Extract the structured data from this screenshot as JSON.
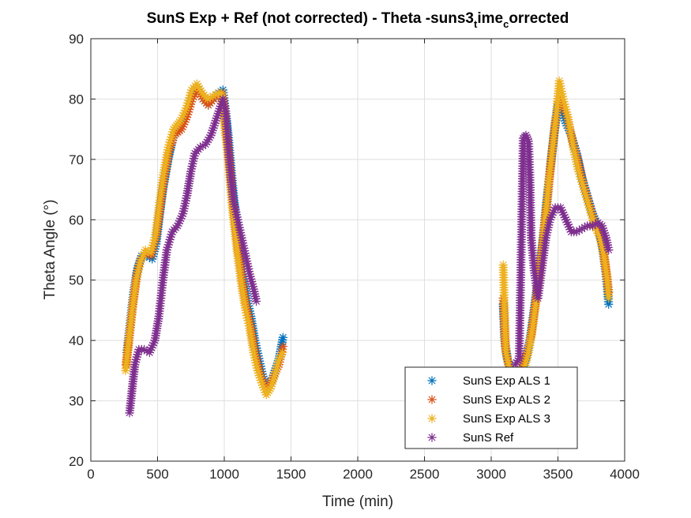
{
  "chart_data": {
    "type": "scatter",
    "title": "SunS Exp + Ref (not corrected) - Theta -suns3",
    "title_sub1": "t",
    "title_mid": "ime",
    "title_sub2": "c",
    "title_end": "orrected",
    "xlabel": "Time (min)",
    "ylabel": "Theta Angle (°)",
    "xlim": [
      0,
      4000
    ],
    "ylim": [
      20,
      90
    ],
    "xticks": [
      0,
      500,
      1000,
      1500,
      2000,
      2500,
      3000,
      3500,
      4000
    ],
    "yticks": [
      20,
      30,
      40,
      50,
      60,
      70,
      80,
      90
    ],
    "grid": true,
    "legend_position": "bottom-right",
    "marker": "*",
    "series": [
      {
        "name": "SunS Exp ALS 1",
        "color": "#0072BD",
        "segments": [
          [
            [
              270,
              38
            ],
            [
              290,
              42
            ],
            [
              320,
              48
            ],
            [
              350,
              52
            ],
            [
              380,
              54
            ],
            [
              420,
              54
            ],
            [
              460,
              53.5
            ],
            [
              490,
              56
            ],
            [
              510,
              60
            ],
            [
              540,
              65
            ],
            [
              580,
              70
            ],
            [
              620,
              74
            ],
            [
              680,
              76
            ],
            [
              720,
              78
            ],
            [
              760,
              81
            ],
            [
              800,
              82
            ],
            [
              840,
              80
            ],
            [
              880,
              79
            ],
            [
              920,
              80
            ],
            [
              960,
              81
            ],
            [
              990,
              81.5
            ],
            [
              1010,
              78
            ],
            [
              1030,
              74
            ],
            [
              1050,
              69
            ],
            [
              1070,
              64
            ],
            [
              1090,
              60
            ],
            [
              1110,
              56
            ],
            [
              1140,
              51
            ],
            [
              1170,
              47
            ],
            [
              1200,
              44
            ],
            [
              1230,
              40
            ],
            [
              1260,
              37
            ],
            [
              1290,
              34
            ],
            [
              1320,
              32.5
            ],
            [
              1350,
              33
            ],
            [
              1380,
              35
            ],
            [
              1410,
              37
            ],
            [
              1440,
              40.5
            ]
          ],
          [
            [
              3090,
              46
            ],
            [
              3100,
              40.5
            ],
            [
              3120,
              37
            ],
            [
              3150,
              35
            ],
            [
              3190,
              34
            ],
            [
              3230,
              35
            ],
            [
              3260,
              37
            ],
            [
              3290,
              40
            ],
            [
              3320,
              45
            ],
            [
              3350,
              50
            ],
            [
              3380,
              55
            ],
            [
              3410,
              62
            ],
            [
              3440,
              68
            ],
            [
              3470,
              74
            ],
            [
              3500,
              79
            ],
            [
              3530,
              78
            ],
            [
              3560,
              76
            ],
            [
              3600,
              74
            ],
            [
              3640,
              71
            ],
            [
              3680,
              67
            ],
            [
              3720,
              64
            ],
            [
              3760,
              61
            ],
            [
              3800,
              59
            ],
            [
              3830,
              56
            ],
            [
              3860,
              51
            ],
            [
              3880,
              46
            ]
          ]
        ]
      },
      {
        "name": "SunS Exp ALS 2",
        "color": "#D95319",
        "segments": [
          [
            [
              265,
              36
            ],
            [
              285,
              40
            ],
            [
              315,
              46
            ],
            [
              345,
              51
            ],
            [
              375,
              53.5
            ],
            [
              415,
              54.5
            ],
            [
              455,
              54
            ],
            [
              490,
              57
            ],
            [
              515,
              61
            ],
            [
              545,
              66
            ],
            [
              585,
              71
            ],
            [
              625,
              74
            ],
            [
              680,
              75
            ],
            [
              720,
              77
            ],
            [
              760,
              80
            ],
            [
              800,
              81.5
            ],
            [
              840,
              80
            ],
            [
              880,
              79
            ],
            [
              920,
              80
            ],
            [
              960,
              80.5
            ],
            [
              985,
              81
            ],
            [
              1005,
              77
            ],
            [
              1025,
              73
            ],
            [
              1045,
              68
            ],
            [
              1065,
              63
            ],
            [
              1085,
              59
            ],
            [
              1105,
              55
            ],
            [
              1135,
              50
            ],
            [
              1165,
              46
            ],
            [
              1195,
              43
            ],
            [
              1225,
              39
            ],
            [
              1255,
              36
            ],
            [
              1285,
              33.5
            ],
            [
              1320,
              32
            ],
            [
              1350,
              33
            ],
            [
              1380,
              34.5
            ],
            [
              1410,
              36
            ],
            [
              1440,
              39
            ]
          ],
          [
            [
              3090,
              47
            ],
            [
              3105,
              39
            ],
            [
              3130,
              36
            ],
            [
              3160,
              34
            ],
            [
              3200,
              34.5
            ],
            [
              3240,
              36
            ],
            [
              3270,
              38
            ],
            [
              3300,
              41
            ],
            [
              3330,
              46
            ],
            [
              3360,
              51
            ],
            [
              3390,
              57
            ],
            [
              3420,
              63
            ],
            [
              3450,
              70
            ],
            [
              3480,
              76
            ],
            [
              3505,
              80
            ],
            [
              3535,
              79
            ],
            [
              3570,
              77
            ],
            [
              3610,
              73
            ],
            [
              3650,
              70
            ],
            [
              3690,
              66
            ],
            [
              3730,
              63
            ],
            [
              3770,
              60
            ],
            [
              3810,
              58
            ],
            [
              3840,
              55
            ],
            [
              3865,
              51
            ],
            [
              3880,
              48
            ]
          ]
        ]
      },
      {
        "name": "SunS Exp ALS 3",
        "color": "#EDB120",
        "segments": [
          [
            [
              260,
              35
            ],
            [
              280,
              39
            ],
            [
              310,
              45
            ],
            [
              340,
              50
            ],
            [
              370,
              53
            ],
            [
              410,
              55
            ],
            [
              450,
              54.5
            ],
            [
              485,
              57.5
            ],
            [
              510,
              62
            ],
            [
              540,
              67
            ],
            [
              580,
              72
            ],
            [
              620,
              75
            ],
            [
              675,
              76.5
            ],
            [
              715,
              78.5
            ],
            [
              755,
              81.5
            ],
            [
              795,
              82.5
            ],
            [
              835,
              81
            ],
            [
              875,
              80
            ],
            [
              915,
              80.5
            ],
            [
              955,
              81
            ],
            [
              980,
              81
            ],
            [
              1000,
              76
            ],
            [
              1020,
              72
            ],
            [
              1040,
              67
            ],
            [
              1060,
              62
            ],
            [
              1080,
              58
            ],
            [
              1100,
              54
            ],
            [
              1130,
              49
            ],
            [
              1160,
              45
            ],
            [
              1190,
              42
            ],
            [
              1220,
              38
            ],
            [
              1250,
              35
            ],
            [
              1280,
              33
            ],
            [
              1315,
              31
            ],
            [
              1345,
              32
            ],
            [
              1375,
              34
            ],
            [
              1405,
              36.5
            ],
            [
              1435,
              38
            ]
          ],
          [
            [
              3090,
              52.5
            ],
            [
              3110,
              38
            ],
            [
              3140,
              35
            ],
            [
              3170,
              33.5
            ],
            [
              3210,
              34
            ],
            [
              3250,
              35.5
            ],
            [
              3280,
              38
            ],
            [
              3310,
              42
            ],
            [
              3340,
              47
            ],
            [
              3370,
              53
            ],
            [
              3400,
              59
            ],
            [
              3430,
              66
            ],
            [
              3460,
              72
            ],
            [
              3490,
              78
            ],
            [
              3510,
              83
            ],
            [
              3540,
              80
            ],
            [
              3575,
              77
            ],
            [
              3615,
              72
            ],
            [
              3655,
              68
            ],
            [
              3695,
              65
            ],
            [
              3735,
              62
            ],
            [
              3775,
              59
            ],
            [
              3815,
              57
            ],
            [
              3845,
              54
            ],
            [
              3870,
              50
            ],
            [
              3880,
              47
            ]
          ]
        ]
      },
      {
        "name": "SunS Ref",
        "color": "#7E2F8E",
        "segments": [
          [
            [
              290,
              28
            ],
            [
              310,
              32
            ],
            [
              330,
              36
            ],
            [
              360,
              38.5
            ],
            [
              400,
              38.5
            ],
            [
              440,
              38
            ],
            [
              480,
              40
            ],
            [
              510,
              44
            ],
            [
              540,
              50
            ],
            [
              570,
              55
            ],
            [
              610,
              58
            ],
            [
              650,
              59
            ],
            [
              690,
              61
            ],
            [
              720,
              64
            ],
            [
              750,
              68
            ],
            [
              780,
              71
            ],
            [
              820,
              72
            ],
            [
              860,
              72.5
            ],
            [
              900,
              74
            ],
            [
              930,
              76
            ],
            [
              960,
              78
            ],
            [
              990,
              80
            ],
            [
              1010,
              78
            ],
            [
              1030,
              72
            ],
            [
              1050,
              67
            ],
            [
              1070,
              63
            ],
            [
              1100,
              60
            ],
            [
              1130,
              57
            ],
            [
              1160,
              54
            ],
            [
              1190,
              51
            ],
            [
              1220,
              48.5
            ],
            [
              1240,
              46.5
            ]
          ],
          [
            [
              3180,
              36
            ],
            [
              3210,
              37
            ],
            [
              3240,
              73.5
            ],
            [
              3260,
              74
            ],
            [
              3280,
              73
            ],
            [
              3290,
              67
            ],
            [
              3300,
              57
            ],
            [
              3320,
              52
            ],
            [
              3350,
              47
            ],
            [
              3380,
              52
            ],
            [
              3410,
              57
            ],
            [
              3440,
              60
            ],
            [
              3480,
              62
            ],
            [
              3520,
              62
            ],
            [
              3560,
              60
            ],
            [
              3600,
              58
            ],
            [
              3640,
              58
            ],
            [
              3680,
              58.5
            ],
            [
              3720,
              59
            ],
            [
              3760,
              59
            ],
            [
              3800,
              59.5
            ],
            [
              3830,
              59
            ],
            [
              3860,
              57
            ],
            [
              3880,
              55
            ]
          ]
        ]
      }
    ]
  }
}
